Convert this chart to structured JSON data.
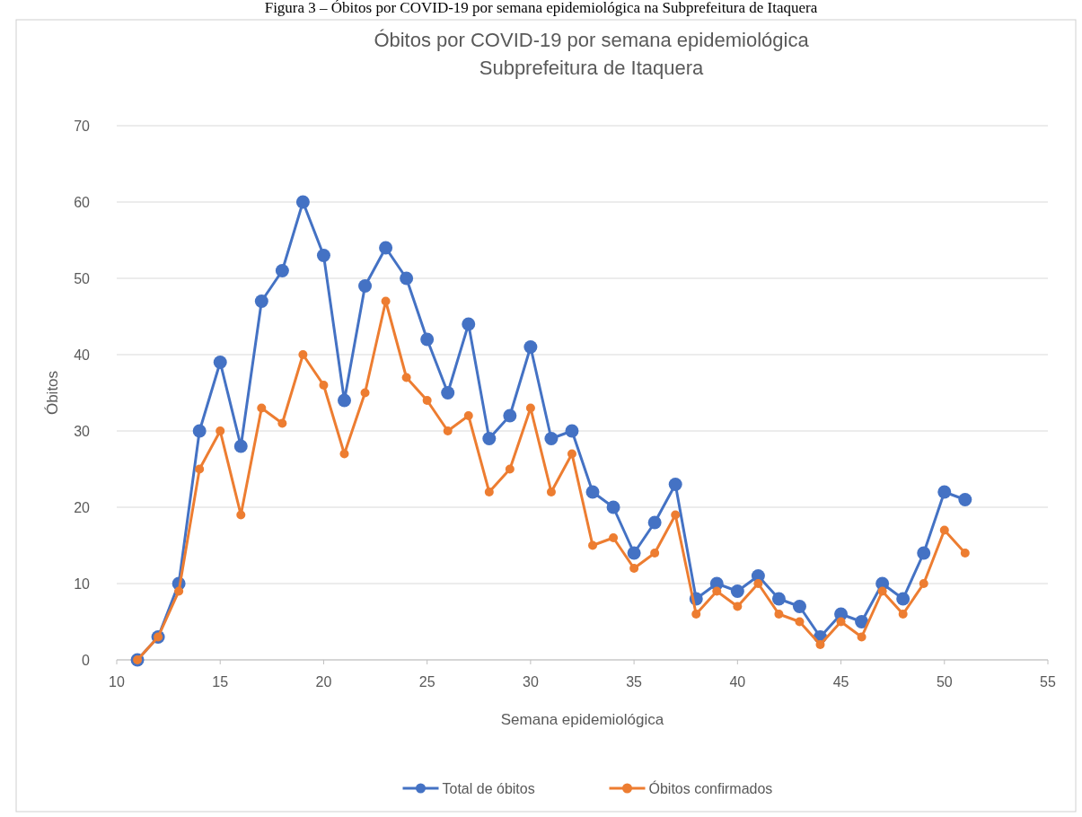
{
  "chart_data": {
    "type": "line",
    "title": "Óbitos por COVID-19 por semana epidemiológica",
    "subtitle": "Subprefeitura de Itaquera",
    "xlabel": "Semana epidemiológica",
    "ylabel": "Óbitos",
    "annotations": [
      "Figura 3 – Óbitos por COVID-19 por semana epidemiológica na Subprefeitura de Itaquera"
    ],
    "x": [
      11,
      12,
      13,
      14,
      15,
      16,
      17,
      18,
      19,
      20,
      21,
      22,
      23,
      24,
      25,
      26,
      27,
      28,
      29,
      30,
      31,
      32,
      33,
      34,
      35,
      36,
      37,
      38,
      39,
      40,
      41,
      42,
      43,
      44,
      45,
      46,
      47,
      48,
      49,
      50,
      51
    ],
    "series": [
      {
        "name": "Total de óbitos",
        "color": "#4472c4",
        "values": [
          0,
          3,
          10,
          30,
          39,
          28,
          47,
          51,
          60,
          53,
          34,
          49,
          54,
          50,
          42,
          35,
          44,
          29,
          32,
          41,
          29,
          30,
          22,
          20,
          14,
          18,
          23,
          8,
          10,
          9,
          11,
          8,
          7,
          3,
          6,
          5,
          10,
          8,
          14,
          22,
          21
        ]
      },
      {
        "name": "Óbitos confirmados",
        "color": "#ed7d31",
        "values": [
          0,
          3,
          9,
          25,
          30,
          19,
          33,
          31,
          40,
          36,
          27,
          35,
          47,
          37,
          34,
          30,
          32,
          22,
          25,
          33,
          22,
          27,
          15,
          16,
          12,
          14,
          19,
          6,
          9,
          7,
          10,
          6,
          5,
          2,
          5,
          3,
          9,
          6,
          10,
          17,
          14
        ]
      }
    ],
    "xlim": [
      10,
      55
    ],
    "xticks": [
      10,
      15,
      20,
      25,
      30,
      35,
      40,
      45,
      50,
      55
    ],
    "ylim": [
      0,
      70
    ],
    "yticks": [
      0,
      10,
      20,
      30,
      40,
      50,
      60,
      70
    ],
    "grid": "y",
    "legend": "bottom",
    "marker": "circle",
    "line_style": "solid"
  }
}
